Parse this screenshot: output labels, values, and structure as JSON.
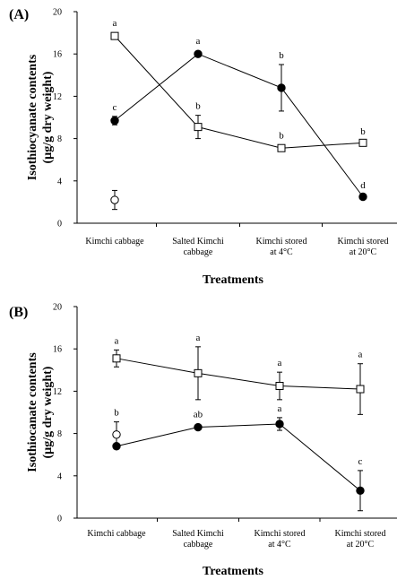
{
  "chart_data": [
    {
      "panel_label": "(A)",
      "type": "line",
      "xlabel": "Treatments",
      "ylabel_lines": [
        "Isothiocyanate contents",
        "(µg/g dry weight)"
      ],
      "ylim": [
        0,
        20
      ],
      "yticks": [
        0,
        4,
        8,
        12,
        16,
        20
      ],
      "categories": [
        [
          "Kimchi cabbage"
        ],
        [
          "Salted Kimchi",
          "cabbage"
        ],
        [
          "Kimchi stored",
          "at 4°C"
        ],
        [
          "Kimchi stored",
          "at 20°C"
        ]
      ],
      "series": [
        {
          "marker": "open-square",
          "line": true,
          "values": [
            17.7,
            9.1,
            7.1,
            7.6
          ],
          "errors": [
            0,
            1.1,
            0.3,
            0.2
          ],
          "labels": [
            "a",
            "b",
            "b",
            "b"
          ]
        },
        {
          "marker": "filled-circle",
          "line": true,
          "values": [
            9.7,
            16.0,
            12.8,
            2.5
          ],
          "errors": [
            0.4,
            0,
            2.2,
            0.2
          ],
          "labels": [
            "c",
            "a",
            "b",
            "d"
          ]
        },
        {
          "marker": "open-circle",
          "line": false,
          "values": [
            2.2,
            null,
            null,
            null
          ],
          "errors": [
            0.9,
            0,
            0,
            0
          ],
          "labels": [
            "",
            "",
            "",
            ""
          ]
        }
      ]
    },
    {
      "panel_label": "(B)",
      "type": "line",
      "xlabel": "Treatments",
      "ylabel_lines": [
        "Isothiocanate contents",
        "(µg/g dry weight)"
      ],
      "ylim": [
        0,
        20
      ],
      "yticks": [
        0,
        4,
        8,
        12,
        16,
        20
      ],
      "categories": [
        [
          "Kimchi cabbage"
        ],
        [
          "Salted Kimchi",
          "cabbage"
        ],
        [
          "Kimchi stored",
          "at 4°C"
        ],
        [
          "Kimchi stored",
          "at 20°C"
        ]
      ],
      "series": [
        {
          "marker": "open-square",
          "line": true,
          "values": [
            15.1,
            13.7,
            12.5,
            12.2
          ],
          "errors": [
            0.8,
            2.5,
            1.3,
            2.4
          ],
          "labels": [
            "a",
            "a",
            "a",
            "a"
          ]
        },
        {
          "marker": "filled-circle",
          "line": true,
          "values": [
            6.8,
            8.6,
            8.9,
            2.6
          ],
          "errors": [
            0,
            0,
            0.6,
            1.9
          ],
          "labels": [
            "",
            "ab",
            "a",
            "c"
          ]
        },
        {
          "marker": "open-circle",
          "line": false,
          "values": [
            7.9,
            null,
            null,
            null
          ],
          "errors": [
            1.2,
            0,
            0,
            0
          ],
          "labels": [
            "b",
            "",
            "",
            ""
          ]
        }
      ]
    }
  ]
}
